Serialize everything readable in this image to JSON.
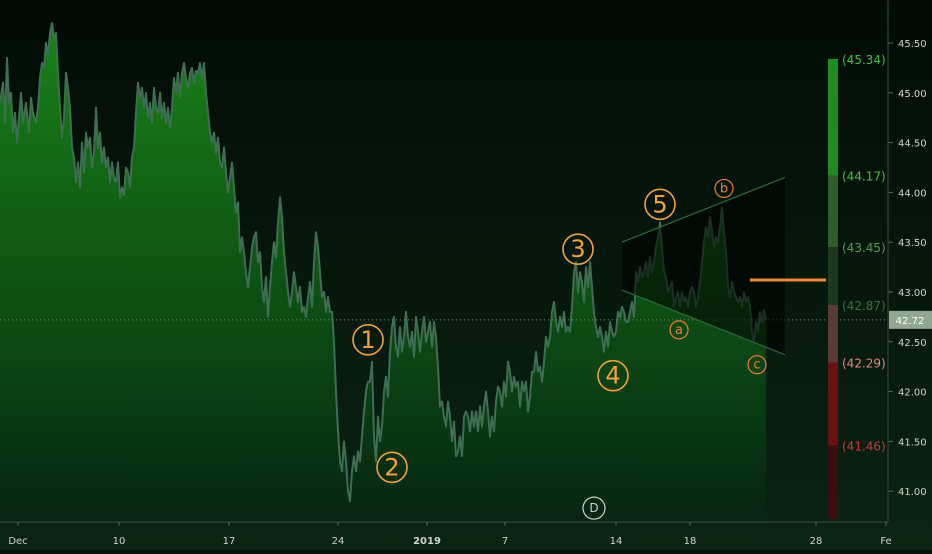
{
  "chart_data": {
    "type": "area",
    "x_tick_labels": [
      "Dec",
      "10",
      "17",
      "24",
      "2019",
      "7",
      "14",
      "18",
      "28",
      "Fe"
    ],
    "y_tick_labels": [
      "45.50",
      "45.00",
      "44.50",
      "44.00",
      "43.50",
      "43.00",
      "42.50",
      "42.00",
      "41.50",
      "41.00"
    ],
    "ylim": [
      40.72,
      45.93
    ],
    "last_price_label": "42.72",
    "last_price": 42.72,
    "price_series": [
      [
        0,
        44.9
      ],
      [
        3,
        45.1
      ],
      [
        5,
        44.7
      ],
      [
        7,
        45.35
      ],
      [
        9,
        44.9
      ],
      [
        11,
        45.0
      ],
      [
        13,
        44.6
      ],
      [
        15,
        44.8
      ],
      [
        17,
        44.5
      ],
      [
        19,
        44.75
      ],
      [
        21,
        45.0
      ],
      [
        23,
        44.7
      ],
      [
        26,
        44.9
      ],
      [
        29,
        44.6
      ],
      [
        31,
        44.95
      ],
      [
        33,
        44.8
      ],
      [
        36,
        44.7
      ],
      [
        38,
        44.85
      ],
      [
        40,
        45.15
      ],
      [
        42,
        45.3
      ],
      [
        44,
        45.25
      ],
      [
        46,
        45.5
      ],
      [
        48,
        45.38
      ],
      [
        50,
        45.6
      ],
      [
        52,
        45.7
      ],
      [
        54,
        45.55
      ],
      [
        56,
        45.6
      ],
      [
        58,
        45.2
      ],
      [
        60,
        44.85
      ],
      [
        62,
        44.55
      ],
      [
        64,
        44.75
      ],
      [
        66,
        45.2
      ],
      [
        68,
        45.05
      ],
      [
        70,
        44.85
      ],
      [
        72,
        44.45
      ],
      [
        74,
        44.35
      ],
      [
        76,
        44.1
      ],
      [
        78,
        44.3
      ],
      [
        80,
        44.05
      ],
      [
        82,
        44.5
      ],
      [
        84,
        44.2
      ],
      [
        86,
        44.6
      ],
      [
        88,
        44.45
      ],
      [
        90,
        44.55
      ],
      [
        92,
        44.25
      ],
      [
        94,
        44.4
      ],
      [
        96,
        44.85
      ],
      [
        98,
        44.45
      ],
      [
        100,
        44.6
      ],
      [
        102,
        44.3
      ],
      [
        104,
        44.45
      ],
      [
        106,
        44.25
      ],
      [
        108,
        44.35
      ],
      [
        110,
        44.1
      ],
      [
        112,
        44.3
      ],
      [
        114,
        44.15
      ],
      [
        116,
        44.1
      ],
      [
        118,
        44.3
      ],
      [
        120,
        43.95
      ],
      [
        122,
        44.05
      ],
      [
        124,
        43.97
      ],
      [
        126,
        44.25
      ],
      [
        128,
        44.2
      ],
      [
        130,
        44.05
      ],
      [
        132,
        44.35
      ],
      [
        134,
        44.45
      ],
      [
        136,
        44.8
      ],
      [
        138,
        45.1
      ],
      [
        140,
        44.95
      ],
      [
        142,
        45.05
      ],
      [
        144,
        44.85
      ],
      [
        146,
        45.0
      ],
      [
        148,
        44.75
      ],
      [
        150,
        44.9
      ],
      [
        152,
        44.7
      ],
      [
        154,
        45.05
      ],
      [
        156,
        44.85
      ],
      [
        158,
        44.8
      ],
      [
        160,
        45.0
      ],
      [
        162,
        44.75
      ],
      [
        164,
        44.9
      ],
      [
        166,
        44.7
      ],
      [
        168,
        44.85
      ],
      [
        170,
        44.65
      ],
      [
        172,
        44.85
      ],
      [
        174,
        45.15
      ],
      [
        176,
        45.0
      ],
      [
        178,
        45.2
      ],
      [
        180,
        44.95
      ],
      [
        182,
        45.2
      ],
      [
        184,
        45.3
      ],
      [
        186,
        45.15
      ],
      [
        188,
        45.05
      ],
      [
        190,
        45.2
      ],
      [
        192,
        45.25
      ],
      [
        194,
        45.1
      ],
      [
        196,
        45.22
      ],
      [
        198,
        45.2
      ],
      [
        200,
        45.3
      ],
      [
        202,
        45.15
      ],
      [
        204,
        45.3
      ],
      [
        206,
        45.0
      ],
      [
        208,
        44.8
      ],
      [
        210,
        44.6
      ],
      [
        212,
        44.5
      ],
      [
        214,
        44.6
      ],
      [
        216,
        44.4
      ],
      [
        218,
        44.55
      ],
      [
        220,
        44.3
      ],
      [
        222,
        44.25
      ],
      [
        224,
        44.45
      ],
      [
        226,
        44.2
      ],
      [
        228,
        44.0
      ],
      [
        230,
        44.15
      ],
      [
        232,
        44.3
      ],
      [
        234,
        44.05
      ],
      [
        236,
        43.8
      ],
      [
        238,
        43.9
      ],
      [
        240,
        43.4
      ],
      [
        242,
        43.55
      ],
      [
        244,
        43.4
      ],
      [
        246,
        43.2
      ],
      [
        248,
        43.05
      ],
      [
        250,
        43.25
      ],
      [
        252,
        43.45
      ],
      [
        254,
        43.55
      ],
      [
        256,
        43.6
      ],
      [
        258,
        43.3
      ],
      [
        260,
        43.4
      ],
      [
        262,
        43.05
      ],
      [
        264,
        42.9
      ],
      [
        266,
        43.15
      ],
      [
        268,
        42.75
      ],
      [
        270,
        43.05
      ],
      [
        272,
        43.3
      ],
      [
        274,
        43.5
      ],
      [
        276,
        43.35
      ],
      [
        278,
        43.7
      ],
      [
        280,
        43.95
      ],
      [
        282,
        43.75
      ],
      [
        284,
        43.4
      ],
      [
        286,
        43.2
      ],
      [
        288,
        43.0
      ],
      [
        290,
        42.85
      ],
      [
        292,
        43.0
      ],
      [
        294,
        43.2
      ],
      [
        296,
        43.05
      ],
      [
        298,
        42.9
      ],
      [
        300,
        43.05
      ],
      [
        302,
        42.8
      ],
      [
        304,
        42.85
      ],
      [
        306,
        42.75
      ],
      [
        308,
        42.95
      ],
      [
        310,
        43.1
      ],
      [
        312,
        42.85
      ],
      [
        314,
        43.3
      ],
      [
        316,
        43.6
      ],
      [
        318,
        43.45
      ],
      [
        320,
        43.2
      ],
      [
        322,
        42.95
      ],
      [
        324,
        43.0
      ],
      [
        326,
        42.8
      ],
      [
        328,
        42.95
      ],
      [
        330,
        42.8
      ],
      [
        332,
        42.8
      ],
      [
        334,
        42.5
      ],
      [
        336,
        42.0
      ],
      [
        338,
        41.6
      ],
      [
        340,
        41.3
      ],
      [
        342,
        41.2
      ],
      [
        344,
        41.5
      ],
      [
        346,
        41.3
      ],
      [
        348,
        41.0
      ],
      [
        350,
        40.9
      ],
      [
        352,
        41.2
      ],
      [
        354,
        41.35
      ],
      [
        356,
        41.2
      ],
      [
        358,
        41.4
      ],
      [
        360,
        41.3
      ],
      [
        362,
        41.55
      ],
      [
        364,
        41.8
      ],
      [
        366,
        42.0
      ],
      [
        368,
        42.1
      ],
      [
        370,
        42.1
      ],
      [
        372,
        42.3
      ],
      [
        374,
        41.55
      ],
      [
        376,
        41.3
      ],
      [
        378,
        41.75
      ],
      [
        380,
        41.5
      ],
      [
        382,
        41.65
      ],
      [
        384,
        42.0
      ],
      [
        386,
        42.15
      ],
      [
        388,
        41.95
      ],
      [
        390,
        42.4
      ],
      [
        392,
        42.65
      ],
      [
        394,
        42.75
      ],
      [
        396,
        42.45
      ],
      [
        398,
        42.35
      ],
      [
        400,
        42.65
      ],
      [
        402,
        42.4
      ],
      [
        404,
        42.55
      ],
      [
        406,
        42.8
      ],
      [
        408,
        42.55
      ],
      [
        410,
        42.45
      ],
      [
        412,
        42.6
      ],
      [
        414,
        42.35
      ],
      [
        416,
        42.75
      ],
      [
        418,
        42.6
      ],
      [
        420,
        42.4
      ],
      [
        422,
        42.6
      ],
      [
        424,
        42.75
      ],
      [
        426,
        42.5
      ],
      [
        428,
        42.6
      ],
      [
        430,
        42.7
      ],
      [
        432,
        42.45
      ],
      [
        434,
        42.7
      ],
      [
        436,
        42.55
      ],
      [
        438,
        42.25
      ],
      [
        440,
        41.85
      ],
      [
        442,
        41.9
      ],
      [
        444,
        41.75
      ],
      [
        446,
        41.65
      ],
      [
        448,
        41.9
      ],
      [
        450,
        41.75
      ],
      [
        452,
        41.5
      ],
      [
        454,
        41.7
      ],
      [
        456,
        41.35
      ],
      [
        458,
        41.4
      ],
      [
        460,
        41.55
      ],
      [
        462,
        41.35
      ],
      [
        464,
        41.75
      ],
      [
        466,
        41.8
      ],
      [
        468,
        41.75
      ],
      [
        470,
        41.6
      ],
      [
        472,
        41.8
      ],
      [
        474,
        41.65
      ],
      [
        476,
        41.8
      ],
      [
        478,
        41.6
      ],
      [
        480,
        41.85
      ],
      [
        482,
        41.65
      ],
      [
        484,
        41.85
      ],
      [
        486,
        42.0
      ],
      [
        488,
        41.8
      ],
      [
        490,
        41.55
      ],
      [
        492,
        41.75
      ],
      [
        494,
        41.6
      ],
      [
        496,
        41.9
      ],
      [
        498,
        42.05
      ],
      [
        500,
        42.0
      ],
      [
        502,
        41.85
      ],
      [
        504,
        42.1
      ],
      [
        506,
        41.95
      ],
      [
        508,
        42.3
      ],
      [
        510,
        42.2
      ],
      [
        512,
        42.0
      ],
      [
        514,
        42.15
      ],
      [
        516,
        42.05
      ],
      [
        518,
        42.1
      ],
      [
        520,
        41.85
      ],
      [
        522,
        42.1
      ],
      [
        524,
        42.0
      ],
      [
        526,
        42.1
      ],
      [
        528,
        41.8
      ],
      [
        530,
        41.95
      ],
      [
        532,
        42.2
      ],
      [
        534,
        42.2
      ],
      [
        536,
        42.4
      ],
      [
        538,
        42.2
      ],
      [
        540,
        42.25
      ],
      [
        542,
        42.1
      ],
      [
        544,
        42.3
      ],
      [
        546,
        42.55
      ],
      [
        548,
        42.45
      ],
      [
        550,
        42.55
      ],
      [
        552,
        42.8
      ],
      [
        554,
        42.9
      ],
      [
        556,
        42.7
      ],
      [
        558,
        42.6
      ],
      [
        560,
        42.75
      ],
      [
        562,
        42.65
      ],
      [
        564,
        42.8
      ],
      [
        566,
        42.6
      ],
      [
        568,
        42.65
      ],
      [
        570,
        42.6
      ],
      [
        572,
        42.85
      ],
      [
        574,
        43.2
      ],
      [
        576,
        43.3
      ],
      [
        578,
        43.0
      ],
      [
        580,
        43.2
      ],
      [
        582,
        43.1
      ],
      [
        584,
        42.9
      ],
      [
        586,
        43.25
      ],
      [
        588,
        43.05
      ],
      [
        590,
        43.3
      ],
      [
        592,
        43.05
      ],
      [
        594,
        42.8
      ],
      [
        596,
        42.65
      ],
      [
        598,
        42.55
      ],
      [
        600,
        42.65
      ],
      [
        602,
        42.55
      ],
      [
        604,
        42.4
      ],
      [
        606,
        42.6
      ],
      [
        608,
        42.45
      ],
      [
        610,
        42.7
      ],
      [
        612,
        42.6
      ],
      [
        614,
        42.55
      ],
      [
        616,
        42.6
      ],
      [
        618,
        42.8
      ],
      [
        620,
        42.75
      ],
      [
        622,
        42.85
      ],
      [
        624,
        42.8
      ],
      [
        626,
        42.7
      ],
      [
        628,
        42.7
      ],
      [
        630,
        42.8
      ],
      [
        632,
        42.9
      ],
      [
        634,
        42.75
      ],
      [
        636,
        43.2
      ],
      [
        638,
        43.1
      ],
      [
        640,
        43.25
      ],
      [
        642,
        43.15
      ],
      [
        644,
        43.2
      ],
      [
        646,
        43.3
      ],
      [
        648,
        43.15
      ],
      [
        650,
        43.35
      ],
      [
        652,
        43.2
      ],
      [
        654,
        43.3
      ],
      [
        656,
        43.45
      ],
      [
        658,
        43.55
      ],
      [
        660,
        43.7
      ],
      [
        662,
        43.45
      ],
      [
        664,
        43.2
      ],
      [
        666,
        43.15
      ],
      [
        668,
        43.0
      ],
      [
        670,
        43.05
      ],
      [
        672,
        43.1
      ],
      [
        674,
        42.85
      ],
      [
        676,
        42.95
      ],
      [
        678,
        43.0
      ],
      [
        680,
        42.85
      ],
      [
        682,
        43.0
      ],
      [
        684,
        42.9
      ],
      [
        686,
        42.95
      ],
      [
        688,
        42.85
      ],
      [
        690,
        43.0
      ],
      [
        692,
        43.05
      ],
      [
        694,
        43.0
      ],
      [
        696,
        42.85
      ],
      [
        698,
        42.95
      ],
      [
        700,
        43.1
      ],
      [
        702,
        43.3
      ],
      [
        704,
        43.5
      ],
      [
        706,
        43.65
      ],
      [
        708,
        43.55
      ],
      [
        710,
        43.75
      ],
      [
        712,
        43.6
      ],
      [
        714,
        43.45
      ],
      [
        716,
        43.55
      ],
      [
        718,
        43.5
      ],
      [
        720,
        43.65
      ],
      [
        722,
        43.85
      ],
      [
        724,
        43.6
      ],
      [
        726,
        43.4
      ],
      [
        728,
        43.05
      ],
      [
        730,
        42.95
      ],
      [
        732,
        43.1
      ],
      [
        734,
        43.0
      ],
      [
        736,
        42.95
      ],
      [
        738,
        42.9
      ],
      [
        740,
        42.95
      ],
      [
        742,
        42.85
      ],
      [
        744,
        43.0
      ],
      [
        746,
        42.9
      ],
      [
        748,
        42.95
      ],
      [
        750,
        42.85
      ],
      [
        752,
        42.6
      ],
      [
        754,
        42.5
      ],
      [
        756,
        42.7
      ],
      [
        758,
        42.6
      ],
      [
        760,
        42.8
      ],
      [
        762,
        42.7
      ],
      [
        764,
        42.82
      ],
      [
        766,
        42.72
      ]
    ],
    "wave_labels": [
      {
        "text": "1",
        "x": 368,
        "y": 42.52
      },
      {
        "text": "2",
        "x": 392,
        "y": 41.24
      },
      {
        "text": "3",
        "x": 578,
        "y": 43.43
      },
      {
        "text": "4",
        "x": 613,
        "y": 42.16
      },
      {
        "text": "5",
        "x": 660,
        "y": 43.88
      },
      {
        "text": "a",
        "x": 679,
        "y": 42.62
      },
      {
        "text": "b",
        "x": 724,
        "y": 44.04
      },
      {
        "text": "c",
        "x": 757,
        "y": 42.27
      },
      {
        "text": "D",
        "x": 594,
        "y": 40.83
      }
    ],
    "channel": {
      "upper": [
        [
          622,
          43.5
        ],
        [
          785,
          44.15
        ]
      ],
      "lower": [
        [
          622,
          43.02
        ],
        [
          785,
          42.37
        ]
      ]
    },
    "projection_level": 43.12,
    "projection_range": [
      750,
      826
    ],
    "level_labels": [
      {
        "text": "(45.34)",
        "value": 45.34,
        "color": "#3fbf3f"
      },
      {
        "text": "(44.17)",
        "value": 44.17,
        "color": "#3fbf3f"
      },
      {
        "text": "(43.45)",
        "value": 43.45,
        "color": "#4f9f4f"
      },
      {
        "text": "(42.87)",
        "value": 42.87,
        "color": "#3c6f3c"
      },
      {
        "text": "(42.29)",
        "value": 42.29,
        "color": "#e08a7a"
      },
      {
        "text": "(41.46)",
        "value": 41.46,
        "color": "#c73a3a"
      }
    ],
    "level_bar": [
      {
        "from": 45.34,
        "to": 44.17,
        "color": "#1e8c1e"
      },
      {
        "from": 44.17,
        "to": 43.45,
        "color": "#2e5e2e"
      },
      {
        "from": 43.45,
        "to": 42.87,
        "color": "#1c3a1c"
      },
      {
        "from": 42.87,
        "to": 42.29,
        "color": "#5a3a34"
      },
      {
        "from": 42.29,
        "to": 41.46,
        "color": "#6a1010"
      },
      {
        "from": 41.46,
        "to": 40.72,
        "color": "#3a0e0e"
      }
    ],
    "colors": {
      "background": "#05140a",
      "line": "#3f6e52",
      "area_top": "#1a8a1a",
      "wave_label": "#f2a23a",
      "ab_label": "#ef7a36",
      "projection": "#f0883a",
      "axis_text": "#cfd6cf",
      "price_tag": "#8fa88f"
    }
  }
}
